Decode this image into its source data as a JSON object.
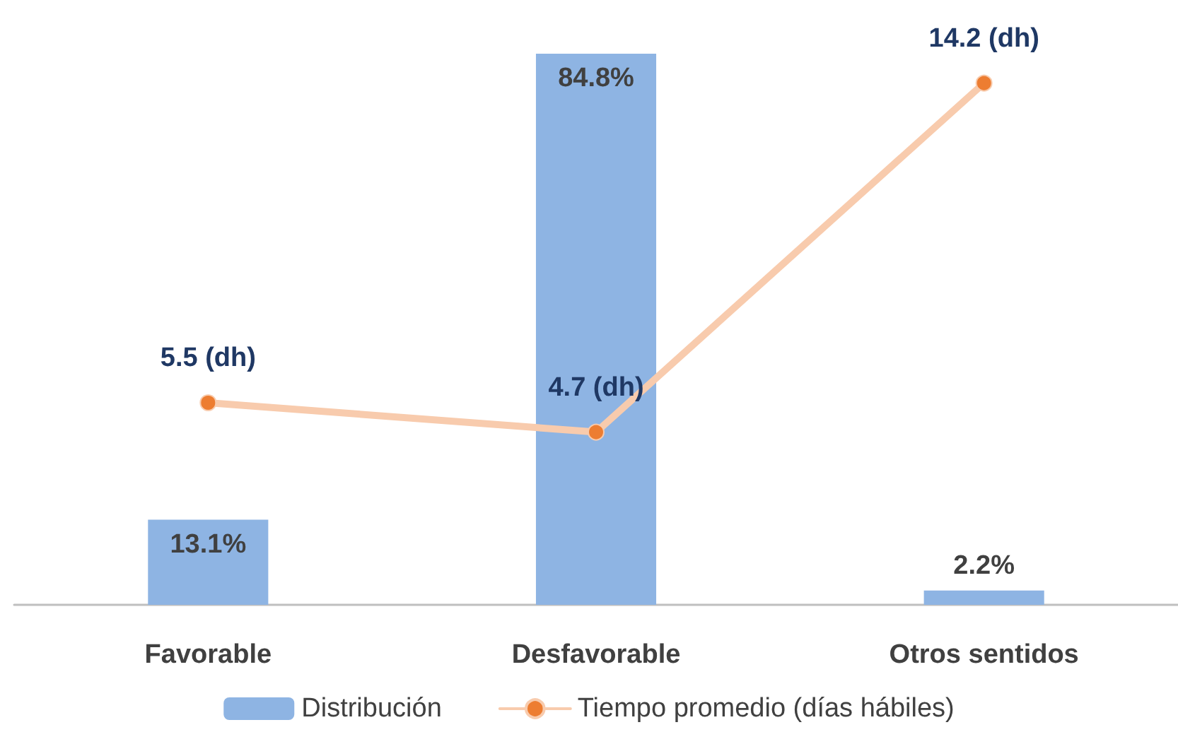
{
  "chart_data": {
    "type": "bar",
    "categories": [
      "Favorable",
      "Desfavorable",
      "Otros sentidos"
    ],
    "series": [
      {
        "name": "Distribución",
        "color": "#8eb4e3",
        "values": [
          13.1,
          84.8,
          2.2
        ],
        "value_labels": [
          "13.1%",
          "84.8%",
          "2.2%"
        ]
      },
      {
        "name": "Tiempo promedio (días hábiles)",
        "type": "line",
        "axis": "y2",
        "color": "#f8cbad",
        "values": [
          5.5,
          4.7,
          14.2
        ],
        "value_labels": [
          "5.5 (dh)",
          "4.7 (dh)",
          "14.2 (dh)"
        ]
      }
    ],
    "ylim": [
      0,
      84.8
    ],
    "y2lim": [
      0,
      15
    ],
    "tick_labels": "x",
    "legend": "bottom",
    "marker": "circle",
    "line_style": "solid"
  }
}
